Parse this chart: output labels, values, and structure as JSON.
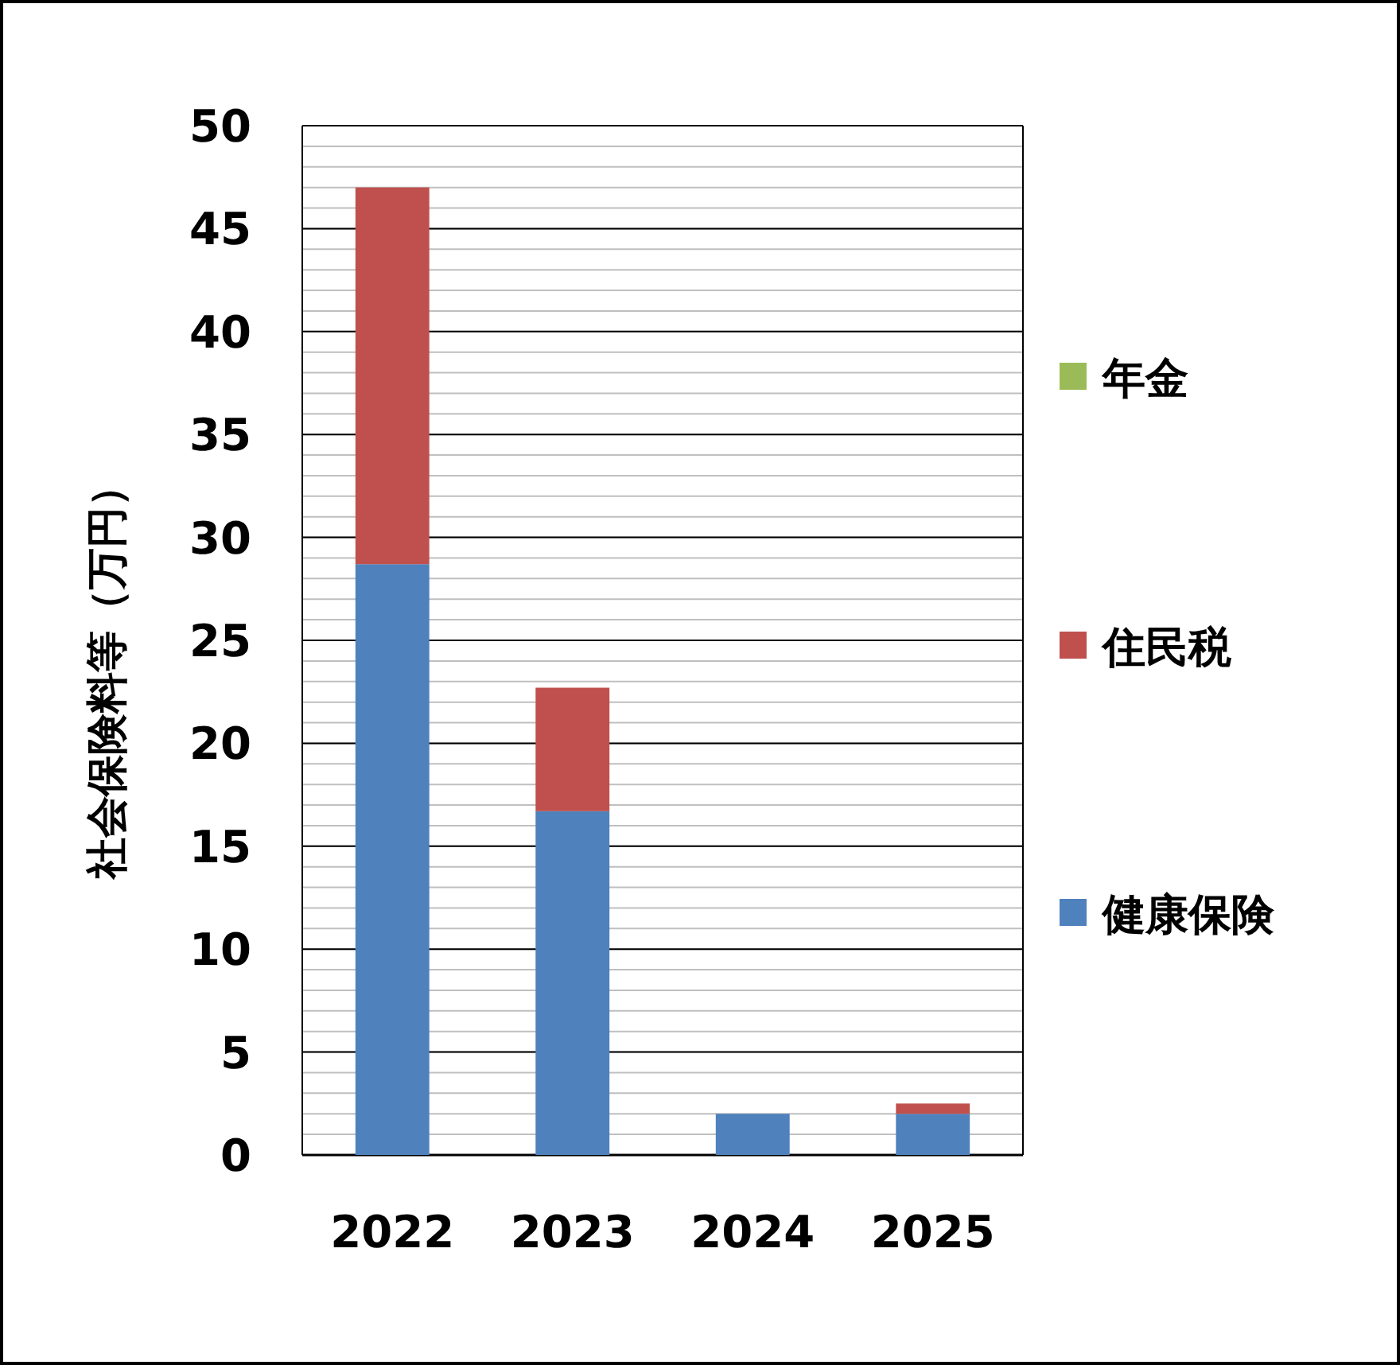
{
  "chart_data": {
    "type": "bar",
    "stacked": true,
    "ylabel": "社会保険料等（万円）",
    "categories": [
      "2022",
      "2023",
      "2024",
      "2025"
    ],
    "series": [
      {
        "name": "健康保険",
        "color": "#4f81bd",
        "values": [
          28.7,
          16.7,
          2.0,
          2.0
        ]
      },
      {
        "name": "住民税",
        "color": "#c0504d",
        "values": [
          18.3,
          6.0,
          0,
          0.5
        ]
      },
      {
        "name": "年金",
        "color": "#9bbb59",
        "values": [
          0,
          0,
          0,
          0
        ]
      }
    ],
    "ylim": [
      0,
      50
    ],
    "yticks": [
      0,
      5,
      10,
      15,
      20,
      25,
      30,
      35,
      40,
      45,
      50
    ],
    "grid": "y",
    "legend": "right"
  }
}
